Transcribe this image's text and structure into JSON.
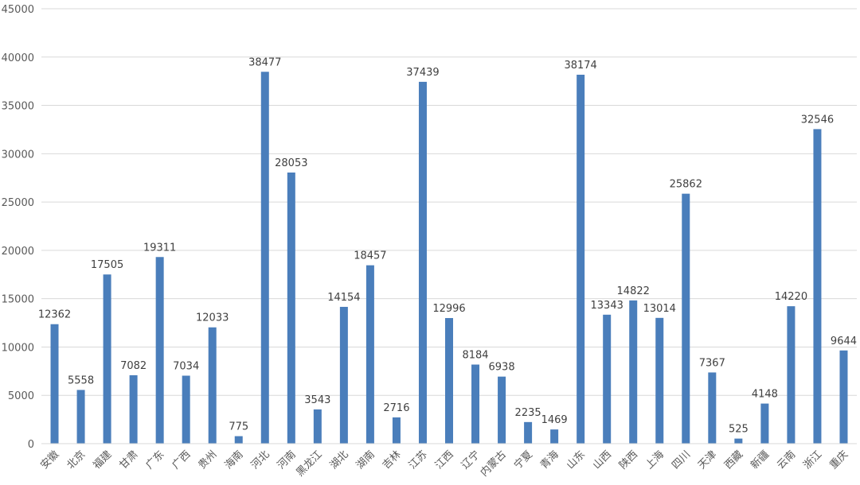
{
  "chart_data": {
    "type": "bar",
    "categories": [
      "安徽",
      "北京",
      "福建",
      "甘肃",
      "广东",
      "广西",
      "贵州",
      "海南",
      "河北",
      "河南",
      "黑龙江",
      "湖北",
      "湖南",
      "吉林",
      "江苏",
      "江西",
      "辽宁",
      "内蒙古",
      "宁夏",
      "青海",
      "山东",
      "山西",
      "陕西",
      "上海",
      "四川",
      "天津",
      "西藏",
      "新疆",
      "云南",
      "浙江",
      "重庆"
    ],
    "values": [
      12362,
      5558,
      17505,
      7082,
      19311,
      7034,
      12033,
      775,
      38477,
      28053,
      3543,
      14154,
      18457,
      2716,
      37439,
      12996,
      8184,
      6938,
      2235,
      1469,
      38174,
      13343,
      14822,
      13014,
      25862,
      7367,
      525,
      4148,
      14220,
      32546,
      9644
    ],
    "title": "",
    "xlabel": "",
    "ylabel": "",
    "ylim": [
      0,
      45000
    ],
    "yticks": [
      0,
      5000,
      10000,
      15000,
      20000,
      25000,
      30000,
      35000,
      40000,
      45000
    ],
    "grid": true,
    "data_labels": true,
    "legend": "none",
    "bar_color": "#4a7ebb",
    "grid_color": "#d9d9d9"
  }
}
